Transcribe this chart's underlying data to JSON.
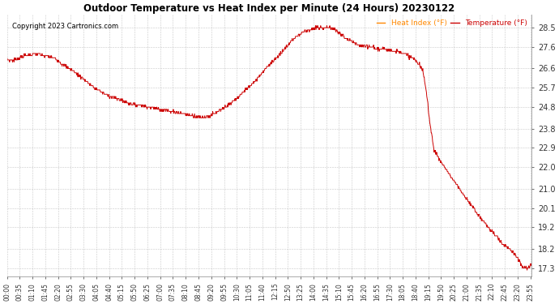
{
  "title": "Outdoor Temperature vs Heat Index per Minute (24 Hours) 20230122",
  "copyright": "Copyright 2023 Cartronics.com",
  "legend_heat": "Heat Index (°F)",
  "legend_temp": "Temperature (°F)",
  "y_ticks": [
    17.3,
    18.2,
    19.2,
    20.1,
    21.0,
    22.0,
    22.9,
    23.8,
    24.8,
    25.7,
    26.6,
    27.6,
    28.5
  ],
  "y_min": 16.9,
  "y_max": 29.1,
  "line_color": "#cc0000",
  "background_color": "#ffffff",
  "grid_color": "#bbbbbb",
  "title_color": "#000000",
  "copyright_color": "#000000",
  "legend_heat_color": "#ff8800",
  "legend_temp_color": "#cc0000",
  "tick_interval_min": 35
}
